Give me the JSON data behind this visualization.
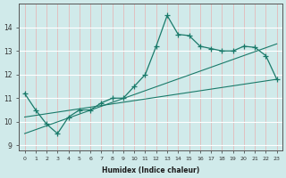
{
  "xlabel": "Humidex (Indice chaleur)",
  "ylabel": "",
  "background_color": "#d0eaea",
  "grid_color_major": "#ffffff",
  "grid_color_minor": "#f0c8c8",
  "line_color": "#1a7a6a",
  "xlim": [
    -0.5,
    23.5
  ],
  "ylim": [
    8.8,
    15.0
  ],
  "xticks": [
    0,
    1,
    2,
    3,
    4,
    5,
    6,
    7,
    8,
    9,
    10,
    11,
    12,
    13,
    14,
    15,
    16,
    17,
    18,
    19,
    20,
    21,
    22,
    23
  ],
  "yticks": [
    9,
    10,
    11,
    12,
    13,
    14
  ],
  "main_x": [
    0,
    1,
    2,
    3,
    4,
    5,
    6,
    7,
    8,
    9,
    10,
    11,
    12,
    13,
    14,
    15,
    16,
    17,
    18,
    19,
    20,
    21,
    22,
    23
  ],
  "main_y": [
    11.2,
    10.5,
    9.9,
    9.5,
    10.2,
    10.5,
    10.5,
    10.8,
    11.0,
    11.0,
    11.5,
    12.0,
    13.2,
    14.5,
    13.7,
    13.65,
    13.2,
    13.1,
    13.0,
    13.0,
    13.2,
    13.15,
    12.8,
    11.8
  ],
  "line1_x": [
    0,
    23
  ],
  "line1_y": [
    10.2,
    11.8
  ],
  "line2_x": [
    0,
    23
  ],
  "line2_y": [
    9.5,
    13.3
  ]
}
